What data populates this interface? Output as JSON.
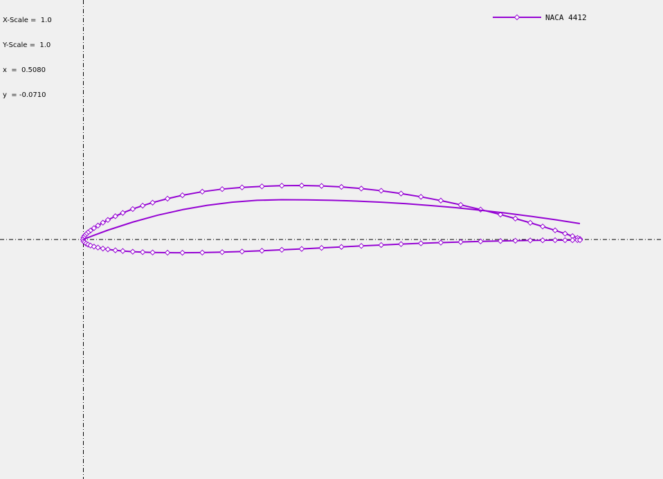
{
  "readout": {
    "x_scale_label": "X-Scale",
    "x_scale_value": "1.0",
    "y_scale_label": "Y-Scale",
    "y_scale_value": "1.0",
    "x_label": "x",
    "x_value": "0.5080",
    "y_label": "y",
    "y_value": "-0.0710"
  },
  "colors": {
    "background": "#f0f0f0",
    "axis": "#000000",
    "series": "#9400d3",
    "marker_fill": "#ffffff"
  },
  "chart_data": {
    "type": "line",
    "title": "",
    "xlabel": "",
    "ylabel": "",
    "xlim": [
      0.0,
      1.0
    ],
    "grid": false,
    "axis_lines": {
      "x_axis_at_y": 0.0,
      "y_axis_at_x": 0.0,
      "style": "dash-dot"
    },
    "legend_position": "top-right",
    "series": [
      {
        "name": "NACA 4412",
        "role": "airfoil-contour",
        "markers": true,
        "x": [
          1.0,
          0.995,
          0.985,
          0.97,
          0.95,
          0.925,
          0.9,
          0.87,
          0.84,
          0.8,
          0.76,
          0.72,
          0.68,
          0.64,
          0.6,
          0.56,
          0.52,
          0.48,
          0.44,
          0.4,
          0.36,
          0.32,
          0.28,
          0.24,
          0.2,
          0.17,
          0.14,
          0.12,
          0.1,
          0.08,
          0.065,
          0.05,
          0.04,
          0.03,
          0.022,
          0.015,
          0.01,
          0.006,
          0.003,
          0.001,
          0.0,
          0.001,
          0.003,
          0.006,
          0.01,
          0.015,
          0.022,
          0.03,
          0.04,
          0.05,
          0.065,
          0.08,
          0.1,
          0.12,
          0.14,
          0.17,
          0.2,
          0.24,
          0.28,
          0.32,
          0.36,
          0.4,
          0.44,
          0.48,
          0.52,
          0.56,
          0.6,
          0.64,
          0.68,
          0.72,
          0.76,
          0.8,
          0.84,
          0.87,
          0.9,
          0.925,
          0.95,
          0.97,
          0.985,
          0.995,
          1.0
        ],
        "y": [
          0.0013,
          0.0032,
          0.0068,
          0.0118,
          0.0184,
          0.0262,
          0.0336,
          0.0421,
          0.0502,
          0.0603,
          0.0697,
          0.0783,
          0.0859,
          0.0925,
          0.0981,
          0.1025,
          0.1058,
          0.1078,
          0.1086,
          0.1083,
          0.1069,
          0.1048,
          0.1014,
          0.0962,
          0.089,
          0.0822,
          0.0742,
          0.0681,
          0.0613,
          0.0535,
          0.0468,
          0.0393,
          0.0339,
          0.028,
          0.0229,
          0.018,
          0.0142,
          0.0106,
          0.0073,
          0.004,
          0.0,
          -0.0034,
          -0.0058,
          -0.0081,
          -0.0102,
          -0.0122,
          -0.0143,
          -0.0162,
          -0.0182,
          -0.0198,
          -0.0217,
          -0.0232,
          -0.0246,
          -0.0255,
          -0.0261,
          -0.0265,
          -0.0266,
          -0.0263,
          -0.0255,
          -0.0242,
          -0.0226,
          -0.0208,
          -0.0189,
          -0.0169,
          -0.0149,
          -0.0129,
          -0.0111,
          -0.0093,
          -0.0077,
          -0.0063,
          -0.005,
          -0.0039,
          -0.003,
          -0.0024,
          -0.0019,
          -0.0016,
          -0.0014,
          -0.0014,
          -0.0014,
          -0.0013,
          -0.0013
        ]
      },
      {
        "name": "",
        "role": "mean-camber-line",
        "markers": false,
        "x": [
          0.0,
          0.02,
          0.05,
          0.1,
          0.15,
          0.2,
          0.25,
          0.3,
          0.35,
          0.4,
          0.45,
          0.5,
          0.55,
          0.6,
          0.65,
          0.7,
          0.75,
          0.8,
          0.85,
          0.9,
          0.95,
          1.0
        ],
        "y": [
          0.0,
          0.0078,
          0.0188,
          0.035,
          0.0488,
          0.06,
          0.0688,
          0.075,
          0.0788,
          0.08,
          0.0798,
          0.0789,
          0.0773,
          0.075,
          0.072,
          0.0683,
          0.064,
          0.0589,
          0.0532,
          0.0468,
          0.0398,
          0.032
        ]
      }
    ]
  }
}
